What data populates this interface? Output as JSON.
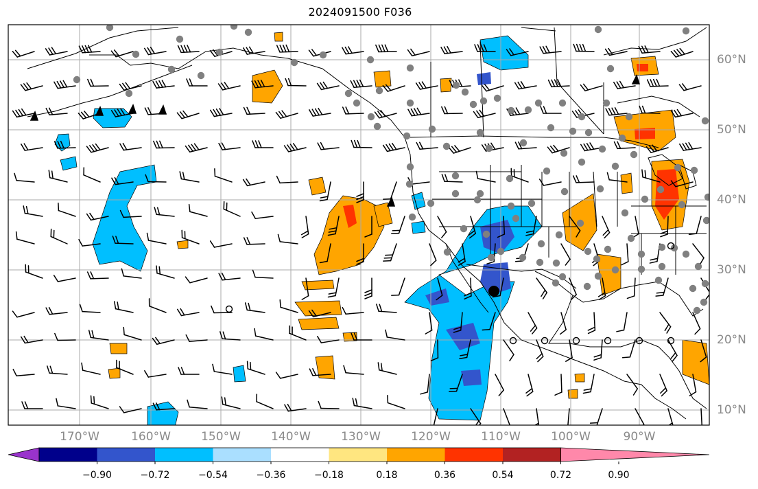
{
  "title": "2024091500 F036",
  "map": {
    "lon_labels": [
      "170°W",
      "160°W",
      "150°W",
      "140°W",
      "130°W",
      "120°W",
      "110°W",
      "100°W",
      "90°W"
    ],
    "lat_labels": [
      "60°N",
      "50°N",
      "40°N",
      "30°N",
      "20°N",
      "10°N"
    ],
    "grid": true
  },
  "colorbar": {
    "colors": [
      "#9933cc",
      "#00008b",
      "#3355cc",
      "#00bfff",
      "#aadfff",
      "#ffffff",
      "#ffe680",
      "#ffa500",
      "#ff3300",
      "#b22222",
      "#ff88aa"
    ],
    "ticks": [
      "−0.90",
      "−0.72",
      "−0.54",
      "−0.36",
      "−0.18",
      "0.18",
      "0.36",
      "0.54",
      "0.72",
      "0.90"
    ]
  },
  "markers": {
    "gray_dot_color": "#808080",
    "barb_color": "#000000"
  }
}
